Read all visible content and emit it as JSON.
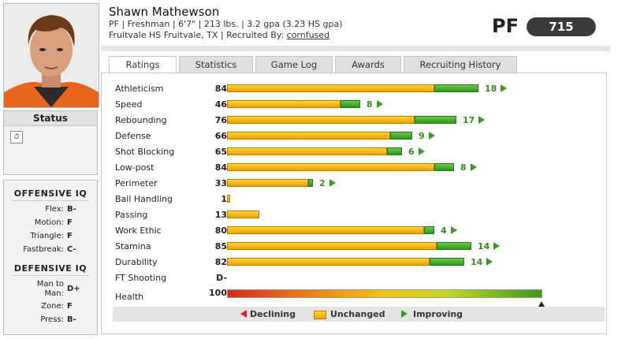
{
  "player": {
    "name": "Shawn Mathewson",
    "line1": "PF  |  Freshman  |  6'7\"  |  213 lbs.  |  3.2 gpa (3.23 HS gpa)",
    "line2_prefix": "Fruitvale HS Fruitvale, TX  |  Recruited By: ",
    "recruiter": "cornfused",
    "position": "PF",
    "overall": "715"
  },
  "status": {
    "title": "Status",
    "icon": "clock-icon"
  },
  "offensive_iq": {
    "title": "OFFENSIVE IQ",
    "items": [
      {
        "label": "Flex:",
        "grade": "B-"
      },
      {
        "label": "Motion:",
        "grade": "F"
      },
      {
        "label": "Triangle:",
        "grade": "F"
      },
      {
        "label": "Fastbreak:",
        "grade": "C-"
      }
    ]
  },
  "defensive_iq": {
    "title": "DEFENSIVE IQ",
    "items": [
      {
        "label": "Man to Man:",
        "grade": "D+"
      },
      {
        "label": "Zone:",
        "grade": "F"
      },
      {
        "label": "Press:",
        "grade": "B-"
      }
    ]
  },
  "tabs": [
    "Ratings",
    "Statistics",
    "Game Log",
    "Awards",
    "Recruiting History"
  ],
  "ratings": [
    {
      "label": "Athleticism",
      "value": 84,
      "gain": 18
    },
    {
      "label": "Speed",
      "value": 46,
      "gain": 8
    },
    {
      "label": "Rebounding",
      "value": 76,
      "gain": 17
    },
    {
      "label": "Defense",
      "value": 66,
      "gain": 9
    },
    {
      "label": "Shot Blocking",
      "value": 65,
      "gain": 6
    },
    {
      "label": "Low-post",
      "value": 84,
      "gain": 8
    },
    {
      "label": "Perimeter",
      "value": 33,
      "gain": 2
    },
    {
      "label": "Ball Handling",
      "value": 1,
      "gain": 0
    },
    {
      "label": "Passing",
      "value": 13,
      "gain": 0
    },
    {
      "label": "Work Ethic",
      "value": 80,
      "gain": 4
    },
    {
      "label": "Stamina",
      "value": 85,
      "gain": 14
    },
    {
      "label": "Durability",
      "value": 82,
      "gain": 14
    }
  ],
  "ft_shooting": {
    "label": "FT Shooting",
    "grade": "D-"
  },
  "health": {
    "label": "Health",
    "value": "100"
  },
  "legend": {
    "declining": "Declining",
    "unchanged": "Unchanged",
    "improving": "Improving"
  },
  "colors": {
    "unchanged": "#f2a000",
    "improving": "#2a9a1c",
    "declining": "#d8281c",
    "badge": "#3a3a3a"
  }
}
